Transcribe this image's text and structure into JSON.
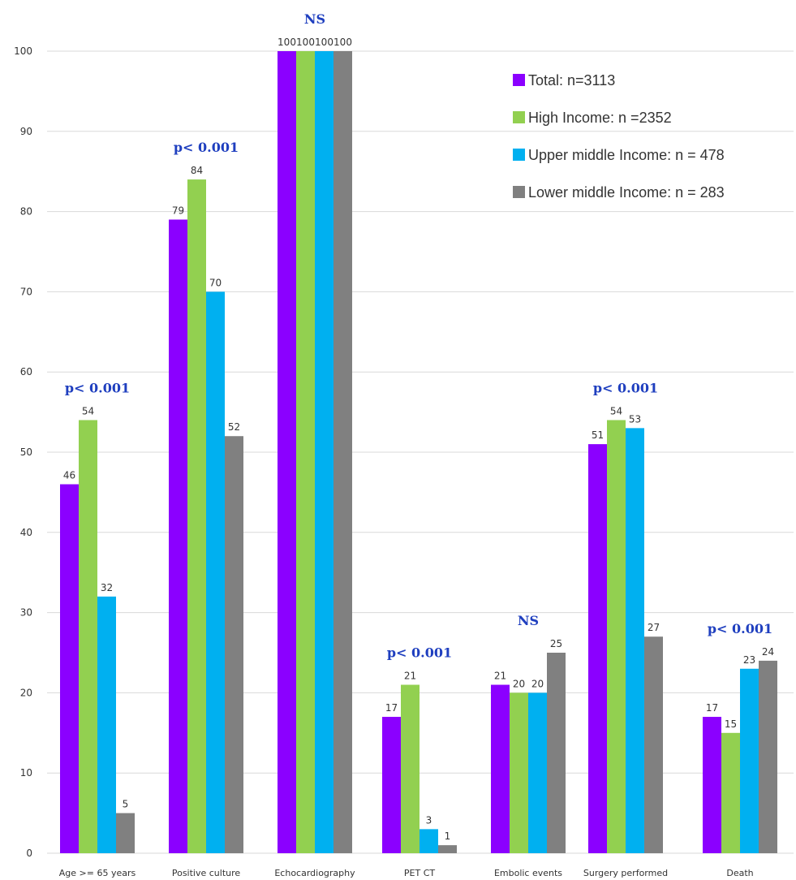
{
  "chart_data": {
    "type": "bar",
    "categories": [
      "Age >= 65 years",
      "Positive culture",
      "Echocardiography",
      "PET CT",
      "Embolic events",
      "Surgery performed",
      "Death"
    ],
    "series": [
      {
        "name": "Total: n=3113",
        "color": "#8b00ff",
        "values": [
          46,
          79,
          100,
          17,
          21,
          51,
          17
        ]
      },
      {
        "name": "High Income: n =2352",
        "color": "#92d050",
        "values": [
          54,
          84,
          100,
          21,
          20,
          54,
          15
        ]
      },
      {
        "name": "Upper middle Income: n = 478",
        "color": "#00b0f0",
        "values": [
          32,
          70,
          100,
          3,
          20,
          53,
          23
        ]
      },
      {
        "name": "Lower middle Income: n = 283",
        "color": "#808080",
        "values": [
          5,
          52,
          100,
          1,
          25,
          27,
          24
        ]
      }
    ],
    "significance": [
      "p< 0.001",
      "p< 0.001",
      "NS",
      "p< 0.001",
      "NS",
      "p< 0.001",
      "p< 0.001"
    ],
    "title": "",
    "xlabel": "",
    "ylabel": "",
    "ylim": [
      0,
      100
    ],
    "yticks": [
      0,
      10,
      20,
      30,
      40,
      50,
      60,
      70,
      80,
      90,
      100
    ],
    "grid": true,
    "legend": "top-right"
  }
}
